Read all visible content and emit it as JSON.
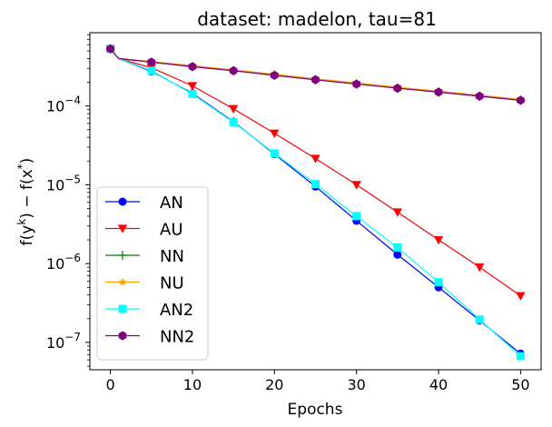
{
  "chart_data": {
    "type": "line",
    "title": "dataset: madelon, tau=81",
    "xlabel": "Epochs",
    "ylabel": {
      "main": "f(y",
      "sup1": "k",
      "mid": ") − f(x",
      "sup2": "*",
      "end": ")"
    },
    "yscale": "log",
    "xlim": [
      -2.5,
      52.5
    ],
    "ylim": [
      4.5e-08,
      0.00085
    ],
    "xticks": [
      0,
      10,
      20,
      30,
      40,
      50
    ],
    "xtick_labels": [
      "0",
      "10",
      "20",
      "30",
      "40",
      "50"
    ],
    "yticks": [
      {
        "base": "10",
        "exp": "−4",
        "value": 0.0001
      },
      {
        "base": "10",
        "exp": "−5",
        "value": 1e-05
      },
      {
        "base": "10",
        "exp": "−6",
        "value": 1e-06
      },
      {
        "base": "10",
        "exp": "−7",
        "value": 1e-07
      }
    ],
    "legend_position": "lower-left",
    "series": [
      {
        "name": "AN",
        "color": "#0000ff",
        "marker": "circle",
        "x": [
          0,
          1,
          5,
          10,
          15,
          20,
          25,
          30,
          35,
          40,
          45,
          50
        ],
        "y": [
          0.00053,
          0.0004,
          0.000275,
          0.000145,
          6.3e-05,
          2.45e-05,
          9.5e-06,
          3.5e-06,
          1.3e-06,
          5e-07,
          1.9e-07,
          7.2e-08
        ]
      },
      {
        "name": "AU",
        "color": "#ff0000",
        "marker": "triangle-down",
        "x": [
          0,
          1,
          5,
          10,
          15,
          20,
          25,
          30,
          35,
          40,
          45,
          50
        ],
        "y": [
          0.00053,
          0.0004,
          0.000305,
          0.00018,
          9.2e-05,
          4.5e-05,
          2.15e-05,
          1e-05,
          4.5e-06,
          2e-06,
          9e-07,
          3.9e-07
        ]
      },
      {
        "name": "NN",
        "color": "#008000",
        "marker": "plus",
        "x": [
          0,
          1,
          5,
          10,
          15,
          20,
          25,
          30,
          35,
          40,
          45,
          50
        ],
        "y": [
          0.00053,
          0.0004,
          0.00036,
          0.000315,
          0.00028,
          0.000245,
          0.000215,
          0.00019,
          0.000168,
          0.00015,
          0.000133,
          0.000118
        ]
      },
      {
        "name": "NU",
        "color": "#ffa500",
        "marker": "star",
        "x": [
          0,
          1,
          5,
          10,
          15,
          20,
          25,
          30,
          35,
          40,
          45,
          50
        ],
        "y": [
          0.00053,
          0.0004,
          0.000365,
          0.000325,
          0.000287,
          0.000253,
          0.000222,
          0.000196,
          0.000173,
          0.000154,
          0.000137,
          0.000121
        ]
      },
      {
        "name": "AN2",
        "color": "#00ffff",
        "marker": "square",
        "x": [
          0,
          1,
          5,
          10,
          15,
          20,
          25,
          30,
          35,
          40,
          45,
          50
        ],
        "y": [
          0.00053,
          0.0004,
          0.00028,
          0.000142,
          6.2e-05,
          2.5e-05,
          1.02e-05,
          4e-06,
          1.6e-06,
          5.8e-07,
          1.95e-07,
          6.7e-08
        ]
      },
      {
        "name": "NN2",
        "color": "#800080",
        "marker": "hexagon",
        "x": [
          0,
          1,
          5,
          10,
          15,
          20,
          25,
          30,
          35,
          40,
          45,
          50
        ],
        "y": [
          0.00053,
          0.0004,
          0.00036,
          0.000315,
          0.00028,
          0.000245,
          0.000215,
          0.00019,
          0.000168,
          0.00015,
          0.000133,
          0.000118
        ]
      }
    ]
  }
}
